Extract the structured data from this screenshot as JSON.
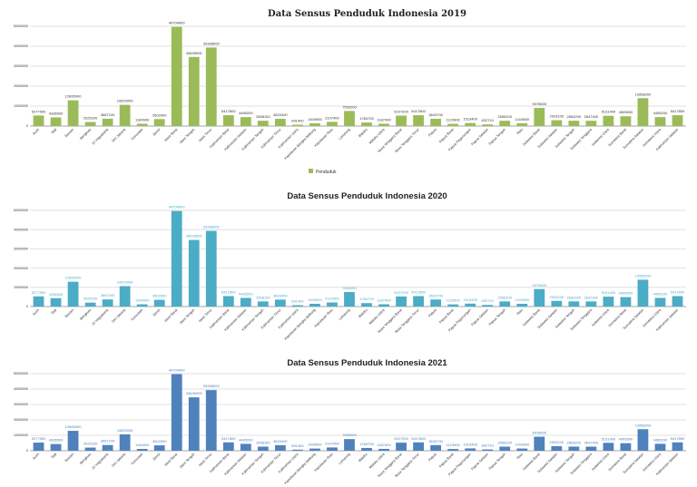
{
  "chart_data": [
    {
      "type": "bar",
      "title": "Data Sensus Penduduk Indonesia 2019",
      "legend": {
        "entries": [
          "Penduduk"
        ],
        "placement": "bottom"
      },
      "color": "#9bbb59",
      "label_color": "#333333",
      "title_style": "serif",
      "ylim": [
        0,
        50000000
      ],
      "yticks": [
        "0",
        "10000000",
        "20000000",
        "30000000",
        "40000000",
        "50000000"
      ],
      "grid": true,
      "series": [
        {
          "name": "Penduduk",
          "values": [
            5277500,
            4336500,
            12895000,
            2025100,
            3687100,
            10620000,
            1164600,
            3502900,
            49704000,
            34635000,
            39338000,
            5417800,
            4485200,
            2658100,
            3620400,
            691400,
            1404900,
            2107400,
            7553200,
            1784700,
            1187400,
            5227200,
            5417800,
            3643700,
            1123900,
            1513400,
            832710,
            2658100,
            1419800,
            9078600,
            2923100,
            2664200,
            2647400,
            5131400,
            4905800,
            13958200,
            4485200,
            5417800
          ]
        }
      ]
    },
    {
      "type": "bar",
      "title": "Data Sensus Penduduk Indonesia 2020",
      "color": "#4bacc6",
      "label_color": "#4bacc6",
      "title_style": "sans",
      "ylim": [
        0,
        50000000
      ],
      "yticks": [
        "0",
        "10000000",
        "20000000",
        "30000000",
        "40000000",
        "50000000"
      ],
      "grid": true,
      "series": [
        {
          "values": [
            5277500,
            4336500,
            12895000,
            2025100,
            3687100,
            10620000,
            1164600,
            3502900,
            49704000,
            34635000,
            39338000,
            5417800,
            4485200,
            2658100,
            3620400,
            691400,
            1404900,
            2107400,
            7553200,
            1784700,
            1187400,
            5227200,
            5417800,
            3643700,
            1123900,
            1513400,
            832710,
            2658100,
            1419800,
            9078600,
            2923100,
            2664200,
            2647400,
            5131400,
            4905800,
            13958200,
            4485200,
            5417800
          ]
        }
      ]
    },
    {
      "type": "bar",
      "title": "Data Sensus Penduduk Indonesia 2021",
      "color": "#4f81bd",
      "label_color": "#4f81bd",
      "title_style": "sans",
      "ylim": [
        0,
        50000000
      ],
      "yticks": [
        "0",
        "10000000",
        "20000000",
        "30000000",
        "40000000",
        "50000000"
      ],
      "grid": true,
      "series": [
        {
          "values": [
            5277500,
            4336500,
            12895000,
            2025100,
            3687100,
            10620000,
            1164600,
            3502900,
            49704000,
            34635000,
            39338000,
            5417800,
            4485200,
            2658100,
            3620400,
            691400,
            1404900,
            2107400,
            7553200,
            1784700,
            1187400,
            5227200,
            5417800,
            3643700,
            1123900,
            1513400,
            832710,
            2658100,
            1419800,
            9078600,
            2923100,
            2664200,
            2647400,
            5131400,
            4905800,
            13958200,
            4485200,
            5417800
          ]
        }
      ]
    }
  ],
  "categories": [
    "Aceh",
    "Bali",
    "Banten",
    "Bengkulu",
    "DI Yogyakarta",
    "DKI Jakarta",
    "Gorontalo",
    "Jambi",
    "Jawa Barat",
    "Jawa Tengah",
    "Jawa Timur",
    "Kalimantan Barat",
    "Kalimantan Selatan",
    "Kalimantan Tengah",
    "Kalimantan Timur",
    "Kalimantan Utara",
    "Kepulauan Bangka Belitung",
    "Kepulauan Riau",
    "Lampung",
    "Maluku",
    "Maluku Utara",
    "Nusa Tenggara Barat",
    "Nusa Tenggara Timur",
    "Papua",
    "Papua Barat",
    "Papua Pegunungan",
    "Papua Selatan",
    "Papua Tengah",
    "Riau",
    "Sulawesi Barat",
    "Sulawesi Selatan",
    "Sulawesi Tengah",
    "Sulawesi Tenggara",
    "Sulawesi Utara",
    "Sumatera Barat",
    "Sumatera Selatan",
    "Sumatera Utara",
    "Kalimantan Selatan"
  ]
}
